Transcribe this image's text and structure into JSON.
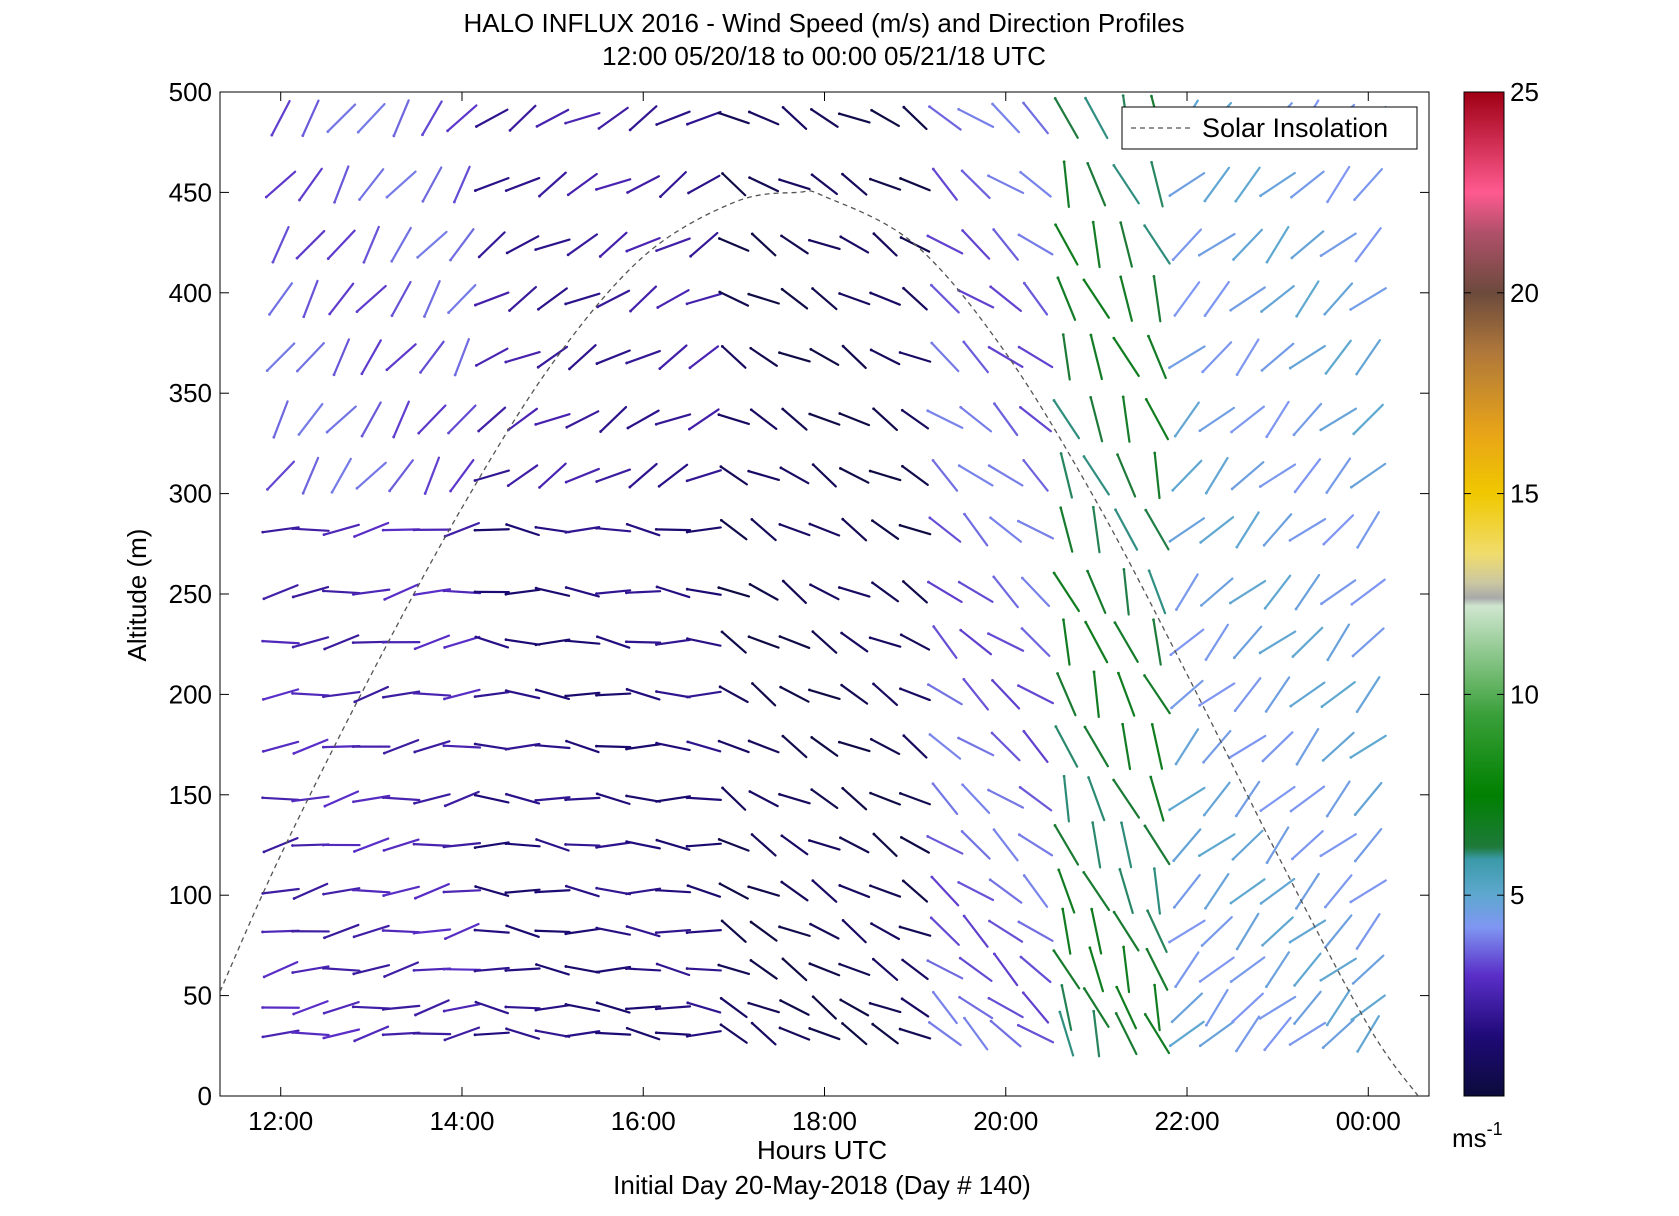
{
  "chart_data": {
    "type": "quiver",
    "title": "HALO INFLUX 2016 - Wind Speed (m/s) and Direction Profiles",
    "subtitle": "12:00 05/20/18 to 00:00 05/21/18  UTC",
    "xlabel": "Hours UTC",
    "footer": "Initial Day 20-May-2018 (Day # 140)",
    "ylabel": "Altitude (m)",
    "xlim": [
      11.33,
      24.67
    ],
    "ylim": [
      0,
      500
    ],
    "x_ticks": [
      {
        "value": 12,
        "label": "12:00"
      },
      {
        "value": 14,
        "label": "14:00"
      },
      {
        "value": 16,
        "label": "16:00"
      },
      {
        "value": 18,
        "label": "18:00"
      },
      {
        "value": 20,
        "label": "20:00"
      },
      {
        "value": 22,
        "label": "22:00"
      },
      {
        "value": 24,
        "label": "00:00"
      }
    ],
    "y_ticks": [
      0,
      50,
      100,
      150,
      200,
      250,
      300,
      350,
      400,
      450,
      500
    ],
    "legend": {
      "position": "top-right",
      "entries": [
        {
          "name": "Solar Insolation",
          "style": "dashed",
          "color": "#000000"
        }
      ]
    },
    "colorbar": {
      "min": 0,
      "max": 25,
      "ticks": [
        5,
        10,
        15,
        20,
        25
      ],
      "unit_label": "ms",
      "unit_exponent": "-1",
      "stops": [
        {
          "value": 0,
          "color": "#0b0b3b"
        },
        {
          "value": 1.5,
          "color": "#1f0a78"
        },
        {
          "value": 3,
          "color": "#5a2ec8"
        },
        {
          "value": 4.2,
          "color": "#7f96f2"
        },
        {
          "value": 5,
          "color": "#5fa8d0"
        },
        {
          "value": 5.9,
          "color": "#3a9aa8"
        },
        {
          "value": 6.2,
          "color": "#1e7a3a"
        },
        {
          "value": 7.5,
          "color": "#008000"
        },
        {
          "value": 9.5,
          "color": "#3aa03a"
        },
        {
          "value": 12.2,
          "color": "#cfe6cf"
        },
        {
          "value": 12.4,
          "color": "#a9a9a9"
        },
        {
          "value": 12.8,
          "color": "#ccc8a0"
        },
        {
          "value": 13.5,
          "color": "#f0dc6c"
        },
        {
          "value": 15,
          "color": "#f0c800"
        },
        {
          "value": 16.5,
          "color": "#e8a418"
        },
        {
          "value": 18.5,
          "color": "#b0783a"
        },
        {
          "value": 20,
          "color": "#6c4a3c"
        },
        {
          "value": 21.5,
          "color": "#b0506a"
        },
        {
          "value": 22.5,
          "color": "#ff5a90"
        },
        {
          "value": 25,
          "color": "#a00014"
        }
      ]
    },
    "solar_insolation": {
      "x": [
        11.33,
        12,
        13,
        14,
        15,
        16,
        17,
        17.7,
        18,
        19,
        20,
        21,
        22,
        23,
        24,
        24.55
      ],
      "y": [
        52,
        120,
        210,
        293,
        365,
        418,
        445,
        450,
        448,
        424,
        370,
        296,
        210,
        120,
        35,
        0
      ]
    },
    "wind_profiles": {
      "altitudes": [
        31,
        44,
        63,
        82,
        102,
        125,
        148,
        174,
        200,
        226,
        251,
        282,
        309,
        337,
        368,
        397,
        424,
        454,
        487
      ],
      "times": [
        12.0,
        12.33,
        12.67,
        13.0,
        13.33,
        13.67,
        14.0,
        14.33,
        14.67,
        15.0,
        15.33,
        15.67,
        16.0,
        16.33,
        16.67,
        17.0,
        17.33,
        17.67,
        18.0,
        18.33,
        18.67,
        19.0,
        19.33,
        19.67,
        20.0,
        20.33,
        20.67,
        21.0,
        21.33,
        21.67,
        22.0,
        22.33,
        22.67,
        23.0,
        23.33,
        23.67,
        24.0
      ],
      "summary": [
        {
          "t_from": 12.0,
          "t_to": 14.0,
          "alt_from": 0,
          "alt_to": 300,
          "direction_deg": 260,
          "speed_ms": 2.6
        },
        {
          "t_from": 12.0,
          "t_to": 14.0,
          "alt_from": 300,
          "alt_to": 500,
          "direction_deg": 215,
          "speed_ms": 3.5
        },
        {
          "t_from": 14.33,
          "t_to": 16.67,
          "alt_from": 0,
          "alt_to": 300,
          "direction_deg": 275,
          "speed_ms": 1.6
        },
        {
          "t_from": 14.33,
          "t_to": 16.67,
          "alt_from": 300,
          "alt_to": 500,
          "direction_deg": 240,
          "speed_ms": 2.2
        },
        {
          "t_from": 17.0,
          "t_to": 19.0,
          "alt_from": 0,
          "alt_to": 500,
          "direction_deg": 300,
          "speed_ms": 0.6
        },
        {
          "t_from": 19.33,
          "t_to": 20.33,
          "alt_from": 0,
          "alt_to": 500,
          "direction_deg": 310,
          "speed_ms": 3.6
        },
        {
          "t_from": 20.67,
          "t_to": 21.67,
          "alt_from": 0,
          "alt_to": 500,
          "direction_deg": 340,
          "speed_ms": 6.4
        },
        {
          "t_from": 22.0,
          "t_to": 24.0,
          "alt_from": 0,
          "alt_to": 500,
          "direction_deg": 225,
          "speed_ms": 4.6
        }
      ]
    }
  }
}
